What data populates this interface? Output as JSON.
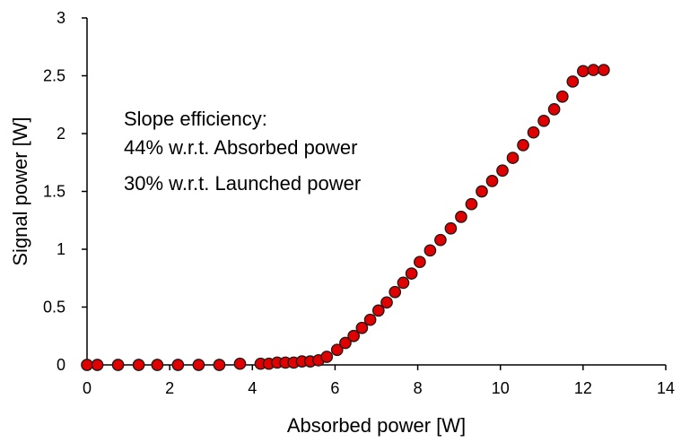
{
  "chart_data": {
    "type": "scatter",
    "xlabel": "Absorbed power [W]",
    "ylabel": "Signal power [W]",
    "xlim": [
      0,
      14
    ],
    "ylim": [
      0,
      3
    ],
    "xticks": [
      0,
      2,
      4,
      6,
      8,
      10,
      12,
      14
    ],
    "yticks": [
      0,
      0.5,
      1,
      1.5,
      2,
      2.5,
      3
    ],
    "xtick_labels": [
      "0",
      "2",
      "4",
      "6",
      "8",
      "10",
      "12",
      "14"
    ],
    "ytick_labels": [
      "0",
      "0.5",
      "1",
      "1.5",
      "2",
      "2.5",
      "3"
    ],
    "grid": false,
    "legend": "none",
    "annotation": [
      "Slope efficiency:",
      "44% w.r.t. Absorbed power",
      "30% w.r.t. Launched power"
    ],
    "marker_color": "#e00000",
    "marker_edge_color": "#1a1a1a",
    "series": [
      {
        "x": [
          0.0,
          0.25,
          0.75,
          1.25,
          1.7,
          2.2,
          2.7,
          3.2,
          3.7,
          4.2,
          4.4,
          4.6,
          4.8,
          5.0,
          5.2,
          5.4,
          5.6,
          5.8,
          6.05,
          6.25,
          6.45,
          6.65,
          6.85,
          7.05,
          7.25,
          7.45,
          7.65,
          7.85,
          8.05,
          8.3,
          8.55,
          8.8,
          9.05,
          9.3,
          9.55,
          9.8,
          10.05,
          10.3,
          10.55,
          10.8,
          11.05,
          11.3,
          11.5,
          11.75,
          12.0,
          12.25,
          12.5
        ],
        "y": [
          0.0,
          0.0,
          0.0,
          0.0,
          0.0,
          0.0,
          0.0,
          0.0,
          0.01,
          0.01,
          0.01,
          0.02,
          0.02,
          0.02,
          0.03,
          0.03,
          0.04,
          0.07,
          0.13,
          0.19,
          0.25,
          0.32,
          0.39,
          0.47,
          0.54,
          0.63,
          0.71,
          0.79,
          0.89,
          0.99,
          1.08,
          1.18,
          1.28,
          1.39,
          1.5,
          1.59,
          1.68,
          1.79,
          1.9,
          2.01,
          2.11,
          2.21,
          2.32,
          2.45,
          2.54,
          2.55,
          2.55
        ]
      }
    ]
  }
}
